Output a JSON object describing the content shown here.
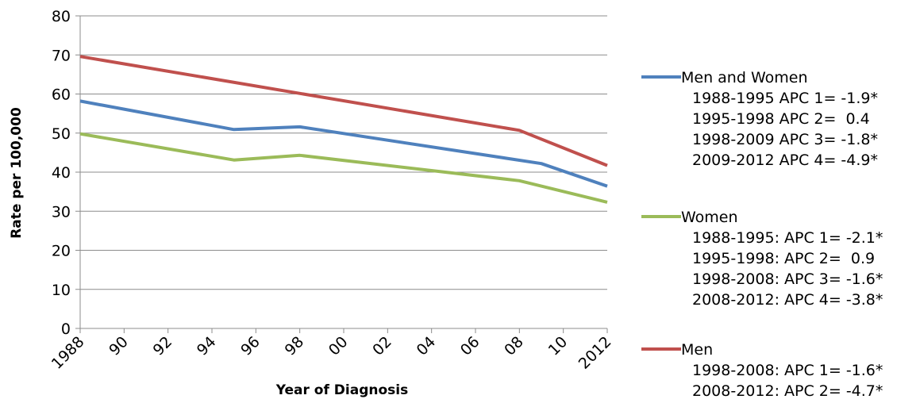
{
  "chart_data": {
    "type": "line",
    "xlabel": "Year of Diagnosis",
    "ylabel": "Rate per 100,000",
    "ylim": [
      0,
      80
    ],
    "yticks": [
      0,
      10,
      20,
      30,
      40,
      50,
      60,
      70,
      80
    ],
    "xlim": [
      1988,
      2012
    ],
    "xticks": [
      {
        "value": 1988,
        "label": "1988"
      },
      {
        "value": 1990,
        "label": "90"
      },
      {
        "value": 1992,
        "label": "92"
      },
      {
        "value": 1994,
        "label": "94"
      },
      {
        "value": 1996,
        "label": "96"
      },
      {
        "value": 1998,
        "label": "98"
      },
      {
        "value": 2000,
        "label": "00"
      },
      {
        "value": 2002,
        "label": "02"
      },
      {
        "value": 2004,
        "label": "04"
      },
      {
        "value": 2006,
        "label": "06"
      },
      {
        "value": 2008,
        "label": "08"
      },
      {
        "value": 2010,
        "label": "10"
      },
      {
        "value": 2012,
        "label": "2012"
      }
    ],
    "grid": "horizontal",
    "legend_position": "right",
    "series": [
      {
        "name": "Men and Women",
        "color": "#4f81bd",
        "points": [
          [
            1988,
            58.2
          ],
          [
            1995,
            50.9
          ],
          [
            1998,
            51.6
          ],
          [
            2009,
            42.2
          ],
          [
            2012,
            36.4
          ]
        ],
        "notes": [
          "1988-1995 APC 1= -1.9*",
          "1995-1998 APC 2=  0.4",
          "1998-2009 APC 3= -1.8*",
          "2009-2012 APC 4= -4.9*"
        ]
      },
      {
        "name": "Women",
        "color": "#9bbb59",
        "points": [
          [
            1988,
            49.8
          ],
          [
            1995,
            43.1
          ],
          [
            1998,
            44.3
          ],
          [
            2008,
            37.8
          ],
          [
            2012,
            32.3
          ]
        ],
        "notes": [
          "1988-1995: APC 1= -2.1*",
          "1995-1998: APC 2=  0.9",
          "1998-2008: APC 3= -1.6*",
          "2008-2012: APC 4= -3.8*"
        ]
      },
      {
        "name": "Men",
        "color": "#c0504d",
        "points": [
          [
            1988,
            69.6
          ],
          [
            2008,
            50.7
          ],
          [
            2012,
            41.7
          ]
        ],
        "notes": [
          "1998-2008: APC 1= -1.6*",
          "2008-2012: APC 2= -4.7*"
        ]
      }
    ]
  }
}
